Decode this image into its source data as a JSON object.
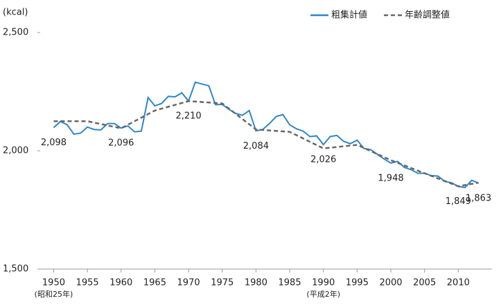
{
  "chart_data": {
    "type": "line",
    "y_unit_label": "(kcal)",
    "xlim": [
      1948,
      2015
    ],
    "xticks": [
      1950,
      1955,
      1960,
      1965,
      1970,
      1975,
      1980,
      1985,
      1990,
      1995,
      2000,
      2005,
      2010
    ],
    "xtick_notes": [
      "(昭和25年)",
      null,
      null,
      null,
      null,
      null,
      null,
      null,
      "(平成2年)",
      null,
      null,
      null,
      null
    ],
    "ylim": [
      1500,
      2500
    ],
    "yticks": [
      {
        "value": 1500,
        "label": "1,500"
      },
      {
        "value": 2000,
        "label": "2,000"
      },
      {
        "value": 2500,
        "label": "2,500"
      }
    ],
    "legend": "top-right",
    "series": [
      {
        "name": "粗集計値",
        "color": "#2e86c8",
        "dash": false,
        "x": [
          1950,
          1951,
          1952,
          1953,
          1954,
          1955,
          1956,
          1957,
          1958,
          1959,
          1960,
          1961,
          1962,
          1963,
          1964,
          1965,
          1966,
          1967,
          1968,
          1969,
          1970,
          1971,
          1972,
          1973,
          1974,
          1975,
          1976,
          1977,
          1978,
          1979,
          1980,
          1981,
          1982,
          1983,
          1984,
          1985,
          1986,
          1987,
          1988,
          1989,
          1990,
          1991,
          1992,
          1993,
          1994,
          1995,
          1996,
          1997,
          1998,
          1999,
          2000,
          2001,
          2002,
          2003,
          2004,
          2005,
          2006,
          2007,
          2008,
          2009,
          2010,
          2011,
          2012,
          2013
        ],
        "values": [
          2098,
          2124,
          2110,
          2070,
          2075,
          2100,
          2090,
          2088,
          2115,
          2115,
          2096,
          2105,
          2080,
          2083,
          2225,
          2190,
          2200,
          2230,
          2228,
          2245,
          2210,
          2290,
          2282,
          2275,
          2195,
          2196,
          2175,
          2158,
          2150,
          2170,
          2084,
          2090,
          2115,
          2145,
          2153,
          2110,
          2093,
          2083,
          2060,
          2063,
          2026,
          2060,
          2065,
          2040,
          2030,
          2045,
          2010,
          2005,
          1985,
          1965,
          1948,
          1955,
          1930,
          1920,
          1905,
          1905,
          1895,
          1893,
          1870,
          1865,
          1849,
          1845,
          1875,
          1863
        ],
        "value_labels": [
          "2,098",
          null,
          null,
          null,
          null,
          null,
          null,
          null,
          null,
          null,
          "2,096",
          null,
          null,
          null,
          null,
          null,
          null,
          null,
          null,
          null,
          "2,210",
          null,
          null,
          null,
          null,
          null,
          null,
          null,
          null,
          null,
          "2,084",
          null,
          null,
          null,
          null,
          null,
          null,
          null,
          null,
          null,
          "2,026",
          null,
          null,
          null,
          null,
          null,
          null,
          null,
          null,
          null,
          "1,948",
          null,
          null,
          null,
          null,
          null,
          null,
          null,
          null,
          null,
          "1,849",
          null,
          null,
          "1,863"
        ]
      },
      {
        "name": "年齢調整値",
        "color": "#666666",
        "dash": true,
        "x": [
          1950,
          1955,
          1960,
          1965,
          1970,
          1975,
          1980,
          1985,
          1990,
          1995,
          2000,
          2005,
          2010,
          2013
        ],
        "values": [
          2125,
          2125,
          2095,
          2170,
          2210,
          2200,
          2090,
          2080,
          2010,
          2025,
          1960,
          1905,
          1850,
          1865
        ]
      }
    ]
  }
}
